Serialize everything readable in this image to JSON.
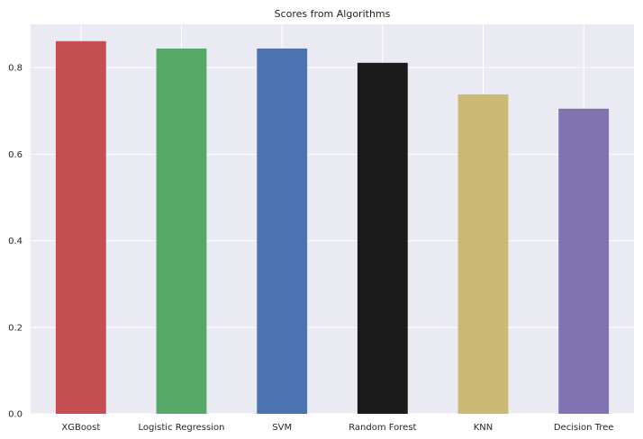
{
  "chart_data": {
    "type": "bar",
    "title": "Scores from Algorithms",
    "xlabel": "",
    "ylabel": "",
    "categories": [
      "XGBoost",
      "Logistic Regression",
      "SVM",
      "Random Forest",
      "KNN",
      "Decision Tree"
    ],
    "values": [
      0.861,
      0.844,
      0.844,
      0.811,
      0.738,
      0.705
    ],
    "colors": [
      "#c44e52",
      "#55a868",
      "#4c72b0",
      "#1a1a1a",
      "#ccb974",
      "#8172b2"
    ],
    "ylim": [
      0,
      0.9
    ],
    "yticks": [
      0.0,
      0.2,
      0.4,
      0.6,
      0.8
    ],
    "ytick_labels": [
      "0.0",
      "0.2",
      "0.4",
      "0.6",
      "0.8"
    ],
    "grid": true,
    "background": "#eaeaf2",
    "grid_color": "#ffffff"
  }
}
